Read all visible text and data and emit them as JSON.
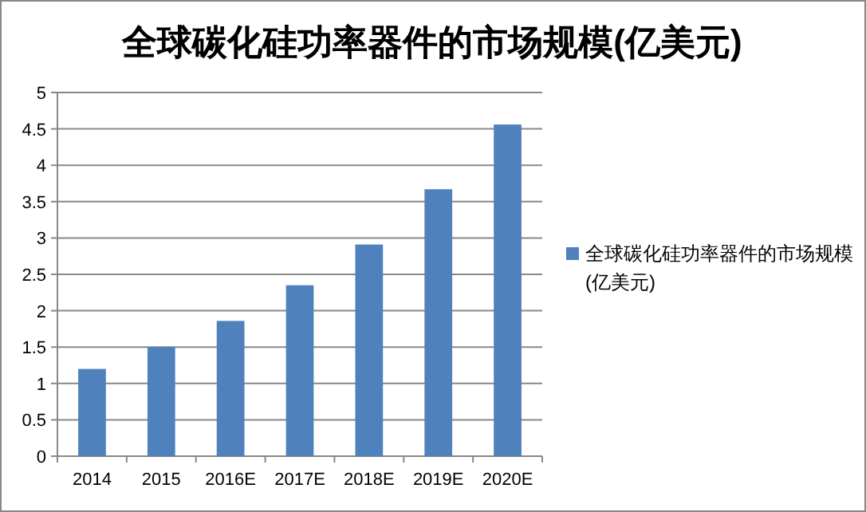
{
  "chart_data": {
    "type": "bar",
    "title": "全球碳化硅功率器件的市场规模(亿美元)",
    "categories": [
      "2014",
      "2015",
      "2016E",
      "2017E",
      "2018E",
      "2019E",
      "2020E"
    ],
    "series": [
      {
        "name": "全球碳化硅功率器件的市场规模(亿美元)",
        "color": "#4f81bd",
        "values": [
          1.2,
          1.5,
          1.86,
          2.35,
          2.91,
          3.67,
          4.56
        ]
      }
    ],
    "ylim": [
      0,
      5
    ],
    "yticks": [
      0,
      0.5,
      1,
      1.5,
      2,
      2.5,
      3,
      3.5,
      4,
      4.5,
      5
    ],
    "grid": "y",
    "legend": "right"
  }
}
